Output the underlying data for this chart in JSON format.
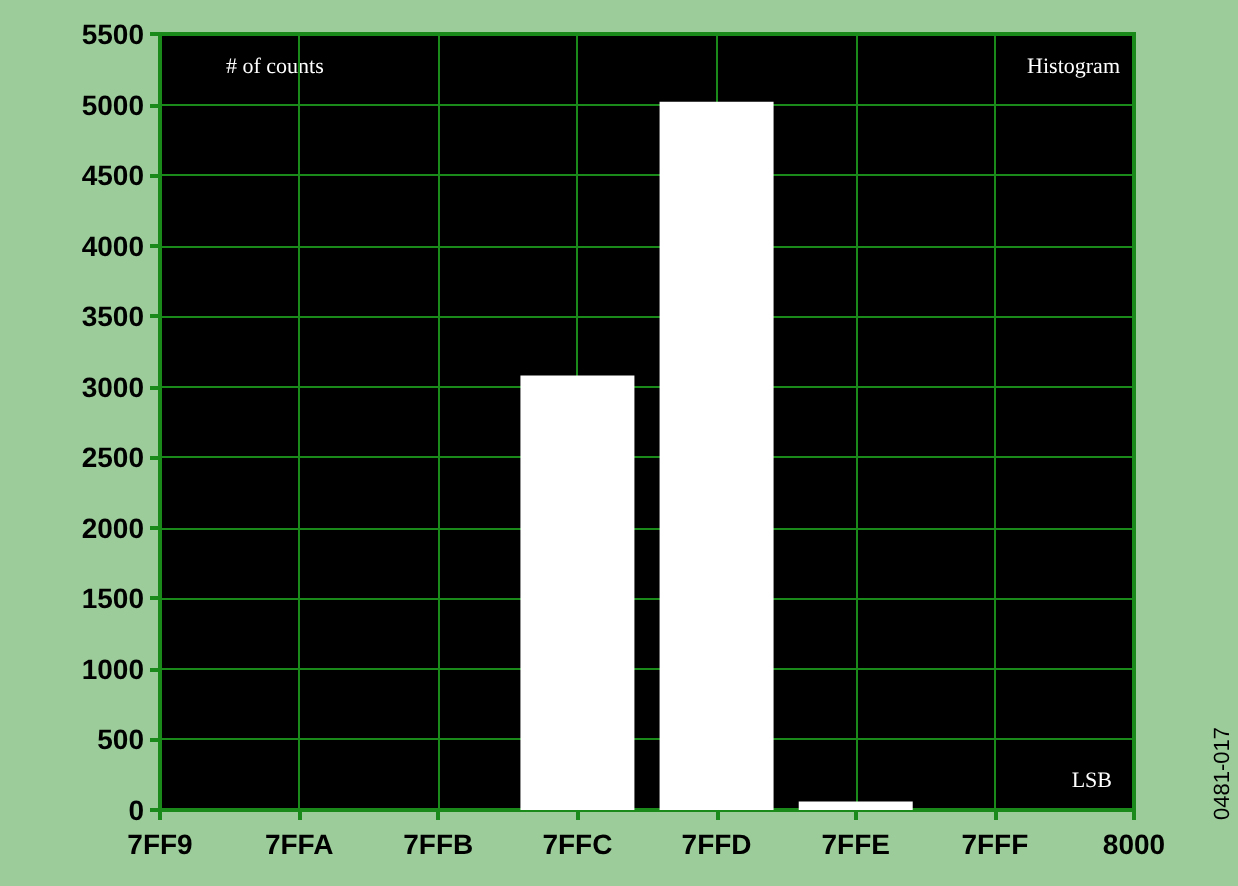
{
  "chart_data": {
    "type": "bar",
    "title": "Histogram",
    "ylabel": "# of counts",
    "xlabel": "LSB",
    "annotations": [
      "0481-017"
    ],
    "categories": [
      "7FF9",
      "7FFA",
      "7FFB",
      "7FFC",
      "7FFD",
      "7FFE",
      "7FFF",
      "8000"
    ],
    "values": [
      0,
      0,
      0,
      3080,
      5020,
      60,
      0,
      0
    ],
    "color": "#ffffff",
    "ylim": [
      0,
      5500
    ],
    "yticks": [
      0,
      500,
      1000,
      1500,
      2000,
      2500,
      3000,
      3500,
      4000,
      4500,
      5000,
      5500
    ],
    "grid": true
  }
}
